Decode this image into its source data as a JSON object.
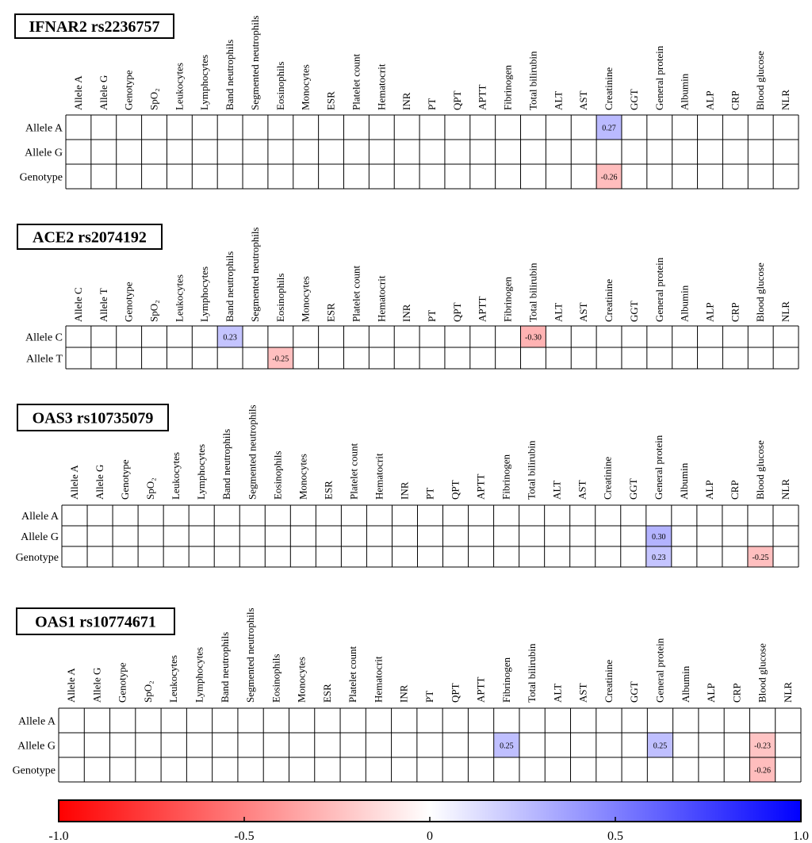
{
  "chart_data": {
    "type": "heatmap",
    "columns": [
      "Allele A",
      "Allele G",
      "Genotype",
      "SpO₂",
      "Leukocytes",
      "Lymphocytes",
      "Band neutrophils",
      "Segmented neutrophils",
      "Eosinophils",
      "Monocytes",
      "ESR",
      "Platelet count",
      "Hematocrit",
      "INR",
      "PT",
      "QPT",
      "APTT",
      "Fibrinogen",
      "Total bilirubin",
      "ALT",
      "AST",
      "Creatinine",
      "GGT",
      "General protein",
      "Albumin",
      "ALP",
      "CRP",
      "Blood glucose",
      "NLR"
    ],
    "panels": [
      {
        "title": "IFNAR2 rs2236757",
        "columns": [
          "Allele A",
          "Allele G",
          "Genotype",
          "SpO₂",
          "Leukocytes",
          "Lymphocytes",
          "Band neutrophils",
          "Segmented neutrophils",
          "Eosinophils",
          "Monocytes",
          "ESR",
          "Platelet count",
          "Hematocrit",
          "INR",
          "PT",
          "QPT",
          "APTT",
          "Fibrinogen",
          "Total bilirubin",
          "ALT",
          "AST",
          "Creatinine",
          "GGT",
          "General protein",
          "Albumin",
          "ALP",
          "CRP",
          "Blood glucose",
          "NLR"
        ],
        "rows": [
          "Allele A",
          "Allele G",
          "Genotype"
        ],
        "cells": [
          {
            "row": "Allele A",
            "col": "Creatinine",
            "value": 0.27,
            "label": "0.27"
          },
          {
            "row": "Genotype",
            "col": "Creatinine",
            "value": -0.26,
            "label": "-0.26"
          }
        ]
      },
      {
        "title": "ACE2 rs2074192",
        "columns": [
          "Allele C",
          "Allele T",
          "Genotype",
          "SpO₂",
          "Leukocytes",
          "Lymphocytes",
          "Band neutrophils",
          "Segmented neutrophils",
          "Eosinophils",
          "Monocytes",
          "ESR",
          "Platelet count",
          "Hematocrit",
          "INR",
          "PT",
          "QPT",
          "APTT",
          "Fibrinogen",
          "Total bilirubin",
          "ALT",
          "AST",
          "Creatinine",
          "GGT",
          "General protein",
          "Albumin",
          "ALP",
          "CRP",
          "Blood glucose",
          "NLR"
        ],
        "rows": [
          "Allele C",
          "Allele T"
        ],
        "cells": [
          {
            "row": "Allele C",
            "col": "Band neutrophils",
            "value": 0.23,
            "label": "0.23"
          },
          {
            "row": "Allele C",
            "col": "Total bilirubin",
            "value": -0.3,
            "label": "-0.30"
          },
          {
            "row": "Allele T",
            "col": "Eosinophils",
            "value": -0.25,
            "label": "-0.25"
          }
        ]
      },
      {
        "title": "OAS3 rs10735079",
        "columns": [
          "Allele A",
          "Allele G",
          "Genotype",
          "SpO₂",
          "Leukocytes",
          "Lymphocytes",
          "Band neutrophils",
          "Segmented neutrophils",
          "Eosinophils",
          "Monocytes",
          "ESR",
          "Platelet count",
          "Hematocrit",
          "INR",
          "PT",
          "QPT",
          "APTT",
          "Fibrinogen",
          "Total bilirubin",
          "ALT",
          "AST",
          "Creatinine",
          "GGT",
          "General protein",
          "Albumin",
          "ALP",
          "CRP",
          "Blood glucose",
          "NLR"
        ],
        "rows": [
          "Allele A",
          "Allele G",
          "Genotype"
        ],
        "cells": [
          {
            "row": "Allele G",
            "col": "General protein",
            "value": 0.3,
            "label": "0.30"
          },
          {
            "row": "Genotype",
            "col": "General protein",
            "value": 0.23,
            "label": "0.23"
          },
          {
            "row": "Genotype",
            "col": "Blood glucose",
            "value": -0.25,
            "label": "-0.25"
          }
        ]
      },
      {
        "title": "OAS1 rs10774671",
        "columns": [
          "Allele A",
          "Allele G",
          "Genotype",
          "SpO₂",
          "Leukocytes",
          "Lymphocytes",
          "Band neutrophils",
          "Segmented neutrophils",
          "Eosinophils",
          "Monocytes",
          "ESR",
          "Platelet count",
          "Hematocrit",
          "INR",
          "PT",
          "QPT",
          "APTT",
          "Fibrinogen",
          "Total bilirubin",
          "ALT",
          "AST",
          "Creatinine",
          "GGT",
          "General protein",
          "Albumin",
          "ALP",
          "CRP",
          "Blood glucose",
          "NLR"
        ],
        "rows": [
          "Allele A",
          "Allele G",
          "Genotype"
        ],
        "cells": [
          {
            "row": "Allele G",
            "col": "Fibrinogen",
            "value": 0.25,
            "label": "0.25"
          },
          {
            "row": "Allele G",
            "col": "General protein",
            "value": 0.25,
            "label": "0.25"
          },
          {
            "row": "Allele G",
            "col": "Blood glucose",
            "value": -0.23,
            "label": "-0.23"
          },
          {
            "row": "Genotype",
            "col": "Blood glucose",
            "value": -0.26,
            "label": "-0.26"
          }
        ]
      }
    ],
    "colorbar": {
      "range": [
        -1.0,
        1.0
      ],
      "ticks": [
        -1.0,
        -0.5,
        0,
        0.5,
        1.0
      ],
      "tick_labels": [
        "-1.0",
        "-0.5",
        "0",
        "0.5",
        "1.0"
      ],
      "min_color": "#ff0000",
      "mid_color": "#ffffff",
      "max_color": "#0000ff"
    }
  }
}
